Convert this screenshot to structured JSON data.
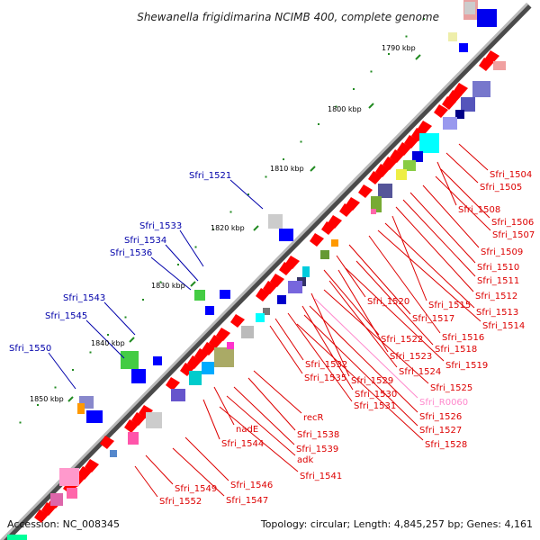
{
  "title": "Shewanella frigidimarina NCIMB 400, complete genome",
  "footer": {
    "accession": "Accession: NC_008345",
    "summary": "Topology: circular; Length: 4,845,257 bp; Genes: 4,161"
  },
  "ticks": [
    "1790 kbp",
    "1800 kbp",
    "1810 kbp",
    "1820 kbp",
    "1830 kbp",
    "1840 kbp",
    "1850 kbp"
  ],
  "colors": {
    "forward": "#ff0000",
    "reverse": "#0000ff",
    "backbone": "#808080",
    "left_label": "#0000aa",
    "right_label": "#dd0000",
    "rna_label": "#ff88cc",
    "tick_mark": "#228b22"
  },
  "left_labels": [
    "Sfri_1521",
    "Sfri_1533",
    "Sfri_1534",
    "Sfri_1536",
    "Sfri_1543",
    "Sfri_1545",
    "Sfri_1550"
  ],
  "right_labels": [
    "Sfri_1504",
    "Sfri_1505",
    "Sfri_1508",
    "Sfri_1506",
    "Sfri_1507",
    "Sfri_1509",
    "Sfri_1510",
    "Sfri_1511",
    "Sfri_1512",
    "Sfri_1520",
    "Sfri_1515",
    "Sfri_1513",
    "Sfri_1517",
    "Sfri_1514",
    "Sfri_1516",
    "Sfri_1522",
    "Sfri_1518",
    "Sfri_1523",
    "Sfri_1519",
    "Sfri_1532",
    "Sfri_1524",
    "Sfri_1535",
    "Sfri_1529",
    "Sfri_1525",
    "Sfri_1530",
    "Sfri_R0060",
    "Sfri_1531",
    "Sfri_1526",
    "recR",
    "Sfri_1527",
    "nadE",
    "Sfri_1538",
    "Sfri_1528",
    "Sfri_1544",
    "Sfri_1539",
    "adk",
    "Sfri_1541",
    "Sfri_1546",
    "Sfri_1549",
    "Sfri_1552",
    "Sfri_1547"
  ]
}
